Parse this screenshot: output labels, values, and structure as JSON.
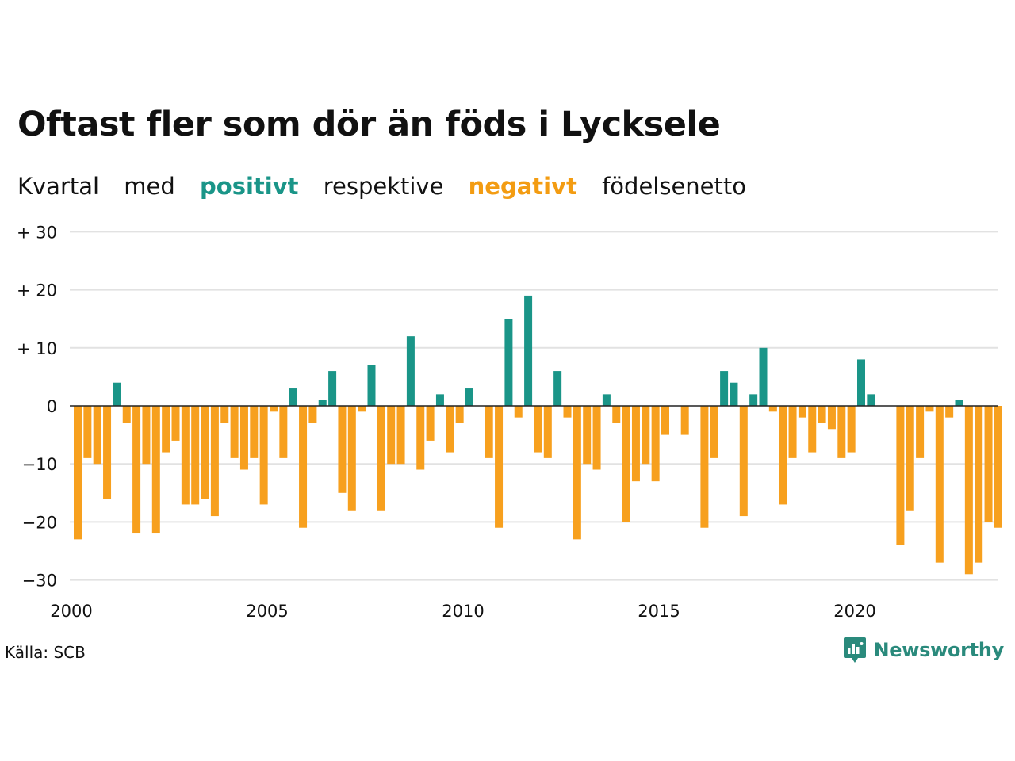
{
  "title": "Oftast fler som dör än föds i Lycksele",
  "subtitle": {
    "w1": "Kvartal",
    "w2": "med",
    "positive": "positivt",
    "w3": "respektive",
    "negative": "negativt",
    "w4": "födelsenetto"
  },
  "colors": {
    "positive": "#1a9588",
    "negative": "#f7a01e",
    "grid": "#e2e2e2",
    "zero": "#222222"
  },
  "source": "Källa: SCB",
  "brand": {
    "name": "Newsworthy",
    "icon": "newsworthy-logo-icon"
  },
  "chart_data": {
    "type": "bar",
    "start_year": 2000,
    "periods_per_year": 4,
    "ylim": [
      -30,
      30
    ],
    "yticks": [
      {
        "value": 30,
        "label": "+ 30"
      },
      {
        "value": 20,
        "label": "+ 20"
      },
      {
        "value": 10,
        "label": "+ 10"
      },
      {
        "value": 0,
        "label": "0"
      },
      {
        "value": -10,
        "label": "−10"
      },
      {
        "value": -20,
        "label": "−20"
      },
      {
        "value": -30,
        "label": "−30"
      }
    ],
    "xticks": [
      {
        "year": 2000,
        "label": "2000"
      },
      {
        "year": 2005,
        "label": "2005"
      },
      {
        "year": 2010,
        "label": "2010"
      },
      {
        "year": 2015,
        "label": "2015"
      },
      {
        "year": 2020,
        "label": "2020"
      }
    ],
    "values": [
      -23,
      -9,
      -10,
      -16,
      4,
      -3,
      -22,
      -10,
      -22,
      -8,
      -6,
      -17,
      -17,
      -16,
      -19,
      -3,
      -9,
      -11,
      -9,
      -17,
      -1,
      -9,
      3,
      -21,
      -3,
      1,
      6,
      -15,
      -18,
      -1,
      7,
      -18,
      -10,
      -10,
      12,
      -11,
      -6,
      2,
      -8,
      -3,
      3,
      0,
      -9,
      -21,
      15,
      -2,
      19,
      -8,
      -9,
      6,
      -2,
      -23,
      -10,
      -11,
      2,
      -3,
      -20,
      -13,
      -10,
      -13,
      -5,
      0,
      -5,
      0,
      -21,
      -9,
      6,
      4,
      -19,
      2,
      10,
      -1,
      -17,
      -9,
      -2,
      -8,
      -3,
      -4,
      -9,
      -8,
      8,
      2,
      0,
      0,
      -24,
      -18,
      -9,
      -1,
      -27,
      -2,
      1,
      -29,
      -27,
      -20,
      -21
    ]
  }
}
